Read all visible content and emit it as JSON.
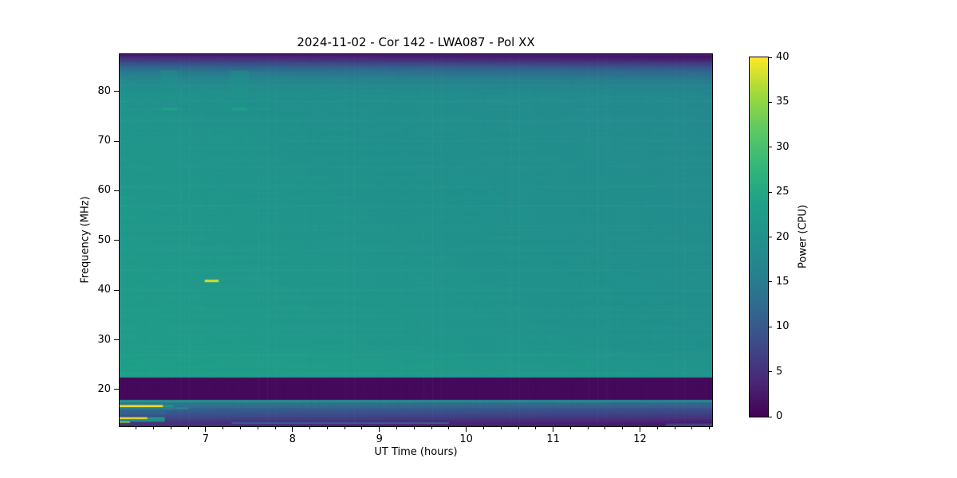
{
  "chart_data": {
    "type": "heatmap",
    "title": "2024-11-02 - Cor 142 - LWA087 - Pol XX",
    "xlabel": "UT Time (hours)",
    "ylabel": "Frequency (MHz)",
    "colorbar_label": "Power (CPU)",
    "x_range": [
      6.01,
      12.83
    ],
    "y_range": [
      12.6,
      87.5
    ],
    "x_ticks": [
      7,
      8,
      9,
      10,
      11,
      12
    ],
    "x_minor_tick_step": 0.2,
    "y_ticks": [
      20,
      30,
      40,
      50,
      60,
      70,
      80
    ],
    "colorbar_ticks": [
      0,
      5,
      10,
      15,
      20,
      25,
      30,
      35,
      40
    ],
    "clim": [
      0,
      40
    ],
    "colormap": "viridis",
    "colormap_stops": [
      "#440154",
      "#482878",
      "#3e4a89",
      "#31688e",
      "#26828e",
      "#21918c",
      "#1fa187",
      "#35b779",
      "#5ec962",
      "#9fda3a",
      "#fde725"
    ],
    "grid": false,
    "legend": "colorbar-right",
    "time_trend_power_delta": {
      "at_start": 1.2,
      "at_end": -1.6
    },
    "freq_profile": [
      [
        87.5,
        2.5
      ],
      [
        87.1,
        3.5
      ],
      [
        86.7,
        4.5
      ],
      [
        86.3,
        6.0
      ],
      [
        85.9,
        7.5
      ],
      [
        85.5,
        9.0
      ],
      [
        85.1,
        10.5
      ],
      [
        84.7,
        12.0
      ],
      [
        84.3,
        13.0
      ],
      [
        83.9,
        14.0
      ],
      [
        83.4,
        15.0
      ],
      [
        82.9,
        16.0
      ],
      [
        82.4,
        16.8
      ],
      [
        81.8,
        17.4
      ],
      [
        81.2,
        18.0
      ],
      [
        80.5,
        18.6
      ],
      [
        79.8,
        19.0
      ],
      [
        79.0,
        19.4
      ],
      [
        78.0,
        19.2
      ],
      [
        77.0,
        19.6
      ],
      [
        76.0,
        19.3
      ],
      [
        75.0,
        19.8
      ],
      [
        74.0,
        19.5
      ],
      [
        73.0,
        20.0
      ],
      [
        72.0,
        19.6
      ],
      [
        71.0,
        20.0
      ],
      [
        70.0,
        19.7
      ],
      [
        69.0,
        20.1
      ],
      [
        68.0,
        19.8
      ],
      [
        67.0,
        20.2
      ],
      [
        66.0,
        19.9
      ],
      [
        65.0,
        20.3
      ],
      [
        64.0,
        20.0
      ],
      [
        63.0,
        20.4
      ],
      [
        62.0,
        20.1
      ],
      [
        61.0,
        20.4
      ],
      [
        60.0,
        20.2
      ],
      [
        59.0,
        20.5
      ],
      [
        58.0,
        20.2
      ],
      [
        57.0,
        20.6
      ],
      [
        56.0,
        20.3
      ],
      [
        55.0,
        20.6
      ],
      [
        54.0,
        20.4
      ],
      [
        53.0,
        20.7
      ],
      [
        52.0,
        20.4
      ],
      [
        51.0,
        20.8
      ],
      [
        50.0,
        20.5
      ],
      [
        49.0,
        20.9
      ],
      [
        48.0,
        20.6
      ],
      [
        47.0,
        21.0
      ],
      [
        46.0,
        20.7
      ],
      [
        45.0,
        21.0
      ],
      [
        44.0,
        20.8
      ],
      [
        43.0,
        21.1
      ],
      [
        42.0,
        20.9
      ],
      [
        41.0,
        21.2
      ],
      [
        40.0,
        21.0
      ],
      [
        39.0,
        21.3
      ],
      [
        38.0,
        21.0
      ],
      [
        37.0,
        21.3
      ],
      [
        36.0,
        21.1
      ],
      [
        35.0,
        21.4
      ],
      [
        34.0,
        21.1
      ],
      [
        33.0,
        21.5
      ],
      [
        32.0,
        21.2
      ],
      [
        31.0,
        21.5
      ],
      [
        30.0,
        21.3
      ],
      [
        29.0,
        21.6
      ],
      [
        28.0,
        21.8
      ],
      [
        27.0,
        22.0
      ],
      [
        26.0,
        22.2
      ],
      [
        25.0,
        22.4
      ],
      [
        24.0,
        22.3
      ],
      [
        23.3,
        22.6
      ],
      [
        22.4,
        0.8
      ],
      [
        17.9,
        19.5
      ],
      [
        17.4,
        13.0
      ],
      [
        16.9,
        12.0
      ],
      [
        16.4,
        10.5
      ],
      [
        15.9,
        9.5
      ],
      [
        15.4,
        8.5
      ],
      [
        14.9,
        7.5
      ],
      [
        14.4,
        6.5
      ],
      [
        13.9,
        5.0
      ],
      [
        13.4,
        4.0
      ],
      [
        12.9,
        3.2
      ]
    ],
    "features": [
      {
        "name": "burst-dash-42mhz",
        "t": [
          6.99,
          7.15
        ],
        "f": [
          41.6,
          42.1
        ],
        "power": 38
      },
      {
        "name": "cal-column-a",
        "t": [
          6.48,
          6.68
        ],
        "f": [
          76.5,
          84.2
        ],
        "power": 20.5,
        "alpha": 0.45
      },
      {
        "name": "cal-column-b",
        "t": [
          7.28,
          7.5
        ],
        "f": [
          76.5,
          84.2
        ],
        "power": 20.5,
        "alpha": 0.45
      },
      {
        "name": "green-dash-76mhz-a",
        "t": [
          6.5,
          6.68
        ],
        "f": [
          76.2,
          76.7
        ],
        "power": 24
      },
      {
        "name": "green-dash-76mhz-b",
        "t": [
          7.3,
          7.48
        ],
        "f": [
          76.2,
          76.7
        ],
        "power": 24
      },
      {
        "name": "rfi-16.7mhz-yellow",
        "t": [
          6.01,
          6.51
        ],
        "f": [
          16.45,
          16.85
        ],
        "power": 40
      },
      {
        "name": "rfi-16.7mhz-teal-tail",
        "t": [
          6.51,
          6.63
        ],
        "f": [
          16.45,
          16.85
        ],
        "power": 21
      },
      {
        "name": "rfi-block-16.2mhz",
        "t": [
          6.01,
          6.63
        ],
        "f": [
          15.9,
          16.45
        ],
        "power": 15
      },
      {
        "name": "teal-dash-16.2mhz",
        "t": [
          6.64,
          6.8
        ],
        "f": [
          16.0,
          16.4
        ],
        "power": 17
      },
      {
        "name": "rfi-block-15.4mhz",
        "t": [
          6.01,
          6.55
        ],
        "f": [
          14.9,
          15.9
        ],
        "power": 11
      },
      {
        "name": "rfi-14.3mhz-yellow",
        "t": [
          6.01,
          6.33
        ],
        "f": [
          14.05,
          14.4
        ],
        "power": 40
      },
      {
        "name": "rfi-14.3mhz-teal-tail",
        "t": [
          6.33,
          6.53
        ],
        "f": [
          14.05,
          14.4
        ],
        "power": 23
      },
      {
        "name": "rfi-block-13.8mhz",
        "t": [
          6.01,
          6.53
        ],
        "f": [
          13.5,
          14.05
        ],
        "power": 18
      },
      {
        "name": "yellow-dash-13.5mhz",
        "t": [
          6.01,
          6.13
        ],
        "f": [
          13.3,
          13.55
        ],
        "power": 36
      },
      {
        "name": "faint-line-13.3mhz",
        "t": [
          7.3,
          9.8
        ],
        "f": [
          13.1,
          13.35
        ],
        "power": 13
      },
      {
        "name": "corner-band-bottom-right",
        "t": [
          12.3,
          12.83
        ],
        "f": [
          12.6,
          13.15
        ],
        "power": 7
      }
    ]
  }
}
